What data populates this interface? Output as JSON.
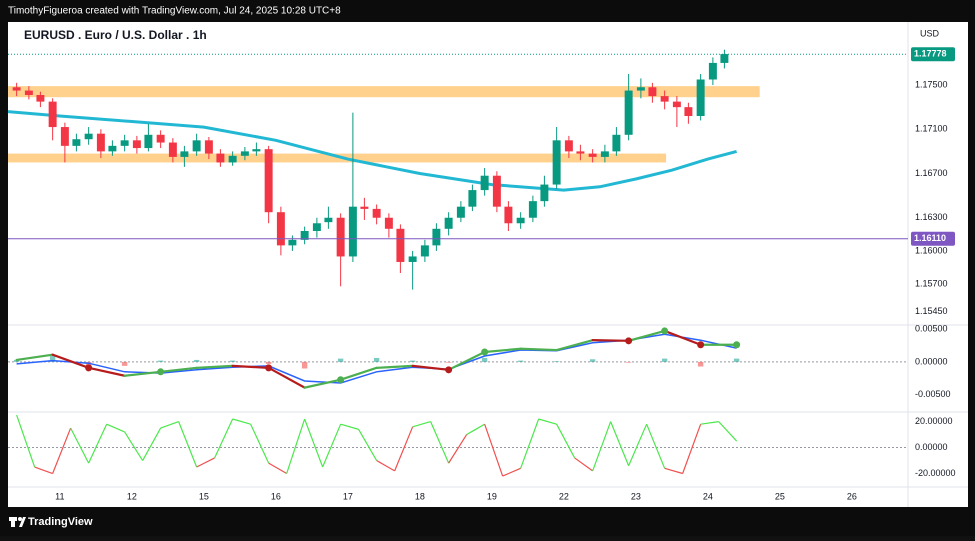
{
  "header": {
    "text": "TimothyFigueroa created with TradingView.com, Jul 24, 2025 10:28 UTC+8"
  },
  "footer": {
    "brand": "TradingView"
  },
  "chart_data": [
    {
      "type": "candlestick",
      "title": "EURUSD . Euro / U.S. Dollar . 1h",
      "currency": "USD",
      "x": [
        -0.6,
        -0.43,
        -0.27,
        -0.1,
        0.07,
        0.23,
        0.4,
        0.57,
        0.73,
        0.9,
        1.07,
        1.23,
        1.4,
        1.57,
        1.73,
        1.9,
        2.07,
        2.23,
        2.4,
        2.57,
        2.73,
        2.9,
        3.07,
        3.23,
        3.4,
        3.57,
        3.73,
        3.9,
        4.07,
        4.23,
        4.4,
        4.57,
        4.73,
        4.9,
        5.07,
        5.23,
        5.4,
        5.57,
        5.73,
        5.9,
        6.07,
        6.23,
        6.4,
        6.57,
        6.73,
        6.9,
        7.07,
        7.23,
        7.4,
        7.57,
        7.73,
        7.9,
        8.07,
        8.23,
        8.4,
        8.57,
        8.73,
        8.9,
        9.07,
        9.23
      ],
      "open": [
        1.1748,
        1.1745,
        1.1741,
        1.1735,
        1.1712,
        1.1695,
        1.1701,
        1.1706,
        1.169,
        1.1695,
        1.17,
        1.1693,
        1.1705,
        1.1698,
        1.1685,
        1.169,
        1.17,
        1.1688,
        1.168,
        1.1686,
        1.169,
        1.1692,
        1.1635,
        1.1605,
        1.161,
        1.1618,
        1.1626,
        1.163,
        1.1595,
        1.164,
        1.1638,
        1.163,
        1.162,
        1.159,
        1.1595,
        1.1605,
        1.162,
        1.163,
        1.164,
        1.1655,
        1.1668,
        1.164,
        1.1625,
        1.163,
        1.1645,
        1.166,
        1.17,
        1.169,
        1.1688,
        1.1685,
        1.169,
        1.1705,
        1.1745,
        1.1748,
        1.174,
        1.1735,
        1.173,
        1.1722,
        1.1755,
        1.177
      ],
      "high": [
        1.1752,
        1.1749,
        1.1744,
        1.1738,
        1.1716,
        1.1706,
        1.1712,
        1.171,
        1.17,
        1.1705,
        1.1704,
        1.1715,
        1.1709,
        1.1702,
        1.1695,
        1.1706,
        1.1703,
        1.1692,
        1.169,
        1.1694,
        1.1698,
        1.1695,
        1.164,
        1.1614,
        1.1622,
        1.163,
        1.164,
        1.1634,
        1.1725,
        1.1648,
        1.1642,
        1.1634,
        1.1624,
        1.16,
        1.161,
        1.1625,
        1.1635,
        1.1645,
        1.166,
        1.1675,
        1.1672,
        1.1645,
        1.1635,
        1.165,
        1.1668,
        1.1712,
        1.1704,
        1.1696,
        1.1692,
        1.1696,
        1.1712,
        1.176,
        1.1756,
        1.1752,
        1.1745,
        1.174,
        1.1734,
        1.176,
        1.1775,
        1.1782
      ],
      "low": [
        1.174,
        1.1737,
        1.173,
        1.17,
        1.168,
        1.169,
        1.1696,
        1.1684,
        1.1686,
        1.169,
        1.1688,
        1.169,
        1.1693,
        1.168,
        1.1676,
        1.1686,
        1.1683,
        1.1676,
        1.1677,
        1.1682,
        1.1686,
        1.1625,
        1.1596,
        1.16,
        1.1606,
        1.1612,
        1.162,
        1.1568,
        1.159,
        1.1628,
        1.1624,
        1.1612,
        1.158,
        1.1565,
        1.159,
        1.16,
        1.1614,
        1.1626,
        1.1636,
        1.165,
        1.1635,
        1.1618,
        1.162,
        1.1626,
        1.164,
        1.1656,
        1.1684,
        1.1682,
        1.168,
        1.168,
        1.1686,
        1.17,
        1.1738,
        1.1734,
        1.1728,
        1.1712,
        1.1715,
        1.1718,
        1.175,
        1.1765
      ],
      "close": [
        1.1745,
        1.1741,
        1.1735,
        1.1712,
        1.1695,
        1.1701,
        1.1706,
        1.169,
        1.1695,
        1.17,
        1.1693,
        1.1705,
        1.1698,
        1.1685,
        1.169,
        1.17,
        1.1688,
        1.168,
        1.1686,
        1.169,
        1.1692,
        1.1635,
        1.1605,
        1.161,
        1.1618,
        1.1625,
        1.163,
        1.1595,
        1.164,
        1.1638,
        1.163,
        1.162,
        1.159,
        1.1595,
        1.1605,
        1.162,
        1.163,
        1.164,
        1.1655,
        1.1668,
        1.164,
        1.1625,
        1.163,
        1.1645,
        1.166,
        1.17,
        1.169,
        1.1688,
        1.1685,
        1.169,
        1.1705,
        1.1745,
        1.1748,
        1.174,
        1.1735,
        1.173,
        1.1722,
        1.1755,
        1.177,
        1.1778
      ],
      "up_color": "#089981",
      "down_color": "#f23645",
      "overlays": [
        {
          "type": "line",
          "color": "#22b8d4",
          "x": [
            -0.72,
            0,
            1,
            2,
            3,
            4,
            5,
            6,
            7,
            7.5,
            8,
            8.5,
            9,
            9.4
          ],
          "values": [
            1.1726,
            1.1722,
            1.1717,
            1.1712,
            1.17,
            1.1683,
            1.167,
            1.166,
            1.1655,
            1.1658,
            1.1665,
            1.1673,
            1.1683,
            1.169
          ]
        }
      ],
      "zones": [
        {
          "low": 1.1739,
          "high": 1.1749,
          "x_end": 9.72,
          "color": "#ffcc80"
        },
        {
          "low": 1.168,
          "high": 1.1688,
          "x_end": 8.42,
          "color": "#ffcc80"
        }
      ],
      "price_lines": [
        {
          "value": 1.17778,
          "label": "1.17778",
          "color": "#089981",
          "style": "dotted"
        },
        {
          "value": 1.1611,
          "label": "1.16110",
          "color": "#7e57c2",
          "style": "solid"
        }
      ],
      "xlim": [
        -0.72,
        11.78
      ],
      "xticks": [
        {
          "value": 0,
          "label": "11"
        },
        {
          "value": 1,
          "label": "12"
        },
        {
          "value": 2,
          "label": "15"
        },
        {
          "value": 3,
          "label": "16"
        },
        {
          "value": 4,
          "label": "17"
        },
        {
          "value": 5,
          "label": "18"
        },
        {
          "value": 6,
          "label": "19"
        },
        {
          "value": 7,
          "label": "22"
        },
        {
          "value": 8,
          "label": "23"
        },
        {
          "value": 9,
          "label": "24"
        },
        {
          "value": 10,
          "label": "25"
        },
        {
          "value": 11,
          "label": "26"
        }
      ],
      "ylim": [
        1.1533,
        1.1807
      ],
      "yticks": [
        {
          "value": 1.175,
          "label": "1.17500"
        },
        {
          "value": 1.171,
          "label": "1.17100"
        },
        {
          "value": 1.167,
          "label": "1.16700"
        },
        {
          "value": 1.163,
          "label": "1.16300"
        },
        {
          "value": 1.16,
          "label": "1.16000"
        },
        {
          "value": 1.157,
          "label": "1.15700"
        },
        {
          "value": 1.1545,
          "label": "1.15450"
        }
      ],
      "grid": false
    },
    {
      "type": "macd",
      "x": [
        -0.6,
        -0.1,
        0.4,
        0.9,
        1.4,
        1.9,
        2.4,
        2.9,
        3.4,
        3.9,
        4.4,
        4.9,
        5.4,
        5.9,
        6.4,
        6.9,
        7.4,
        7.9,
        8.4,
        8.9,
        9.4
      ],
      "macd": {
        "values": [
          0.0003,
          0.0011,
          -0.0009,
          -0.0021,
          -0.0015,
          -0.0009,
          -0.0006,
          -0.0009,
          -0.0039,
          -0.0027,
          -0.0009,
          -0.0006,
          -0.0012,
          0.0015,
          0.002,
          0.0018,
          0.0033,
          0.0032,
          0.0047,
          0.0026,
          0.0026
        ],
        "up_color": "#4caf50",
        "down_color": "#b71c1c"
      },
      "signal": {
        "values": [
          -0.0003,
          0.0002,
          -0.0002,
          -0.0015,
          -0.0017,
          -0.0012,
          -0.0008,
          -0.0006,
          -0.0029,
          -0.0032,
          -0.0015,
          -0.0008,
          -0.0011,
          0.0009,
          0.0018,
          0.0017,
          0.0029,
          0.0033,
          0.0042,
          0.0033,
          0.0021
        ],
        "color": "#2962ff"
      },
      "histogram": {
        "values": [
          0.0003,
          0.0009,
          -0.0007,
          -0.0006,
          0.0002,
          0.0003,
          0.0002,
          -0.0003,
          -0.001,
          0.0005,
          0.0006,
          0.0002,
          -0.0001,
          0.0006,
          0.0002,
          0.0001,
          0.0004,
          -0.0001,
          0.0005,
          -0.0007,
          0.0005
        ],
        "up_color": "#26a69a",
        "down_color": "#ef5350"
      },
      "baseline": 0,
      "ylim": [
        -0.0076,
        0.0056
      ],
      "yticks": [
        {
          "value": 0.005,
          "label": "0.00500"
        },
        {
          "value": 0,
          "label": "0.00000"
        },
        {
          "value": -0.005,
          "label": "-0.00500"
        }
      ],
      "grid": false
    },
    {
      "type": "line",
      "x": [
        -0.6,
        -0.35,
        -0.1,
        0.15,
        0.4,
        0.65,
        0.9,
        1.15,
        1.4,
        1.65,
        1.9,
        2.15,
        2.4,
        2.65,
        2.9,
        3.15,
        3.4,
        3.65,
        3.9,
        4.15,
        4.4,
        4.65,
        4.9,
        5.15,
        5.4,
        5.65,
        5.9,
        6.15,
        6.4,
        6.65,
        6.9,
        7.15,
        7.4,
        7.65,
        7.9,
        8.15,
        8.4,
        8.65,
        8.9,
        9.15,
        9.4
      ],
      "values": [
        25,
        -15,
        -20,
        15,
        -12,
        18,
        12,
        -10,
        15,
        20,
        -15,
        -8,
        22,
        18,
        -12,
        -20,
        22,
        -15,
        18,
        14,
        -10,
        -18,
        16,
        20,
        -12,
        10,
        18,
        -22,
        -16,
        22,
        18,
        -8,
        -18,
        20,
        -14,
        18,
        -16,
        -20,
        18,
        20,
        5
      ],
      "up_color": "#4be84b",
      "down_color": "#f0504f",
      "baseline": 0,
      "ylim": [
        -30.4,
        27.4
      ],
      "yticks": [
        {
          "value": 20,
          "label": "20.00000"
        },
        {
          "value": 0,
          "label": "0.00000"
        },
        {
          "value": -20,
          "label": "-20.00000"
        }
      ],
      "grid": false
    }
  ]
}
